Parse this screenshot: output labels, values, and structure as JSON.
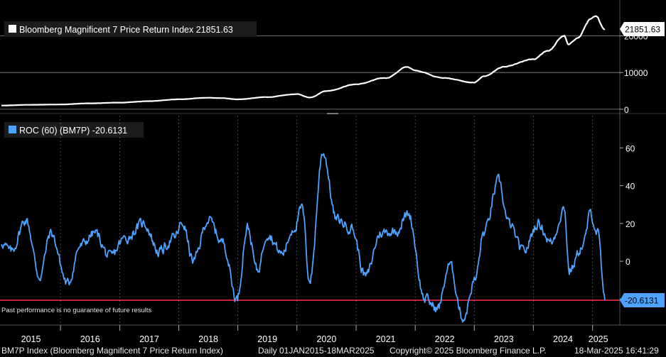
{
  "chart_data": [
    {
      "type": "line",
      "legend": "Bloomberg Magnificent 7 Price Return Index 21851.63",
      "series": [
        {
          "name": "Bloomberg Magnificent 7 Price Return Index",
          "color": "#ffffff"
        }
      ],
      "last_value": "21851.63",
      "x": [
        "2015-01-01",
        "2015-07-01",
        "2016-01-01",
        "2016-07-01",
        "2017-01-01",
        "2017-07-01",
        "2018-01-01",
        "2018-07-01",
        "2018-10-01",
        "2019-01-01",
        "2019-07-01",
        "2020-01-01",
        "2020-03-20",
        "2020-07-01",
        "2021-01-01",
        "2021-07-01",
        "2021-11-15",
        "2022-01-01",
        "2022-07-01",
        "2022-12-31",
        "2023-03-01",
        "2023-07-01",
        "2024-01-01",
        "2024-04-01",
        "2024-07-10",
        "2024-08-05",
        "2024-10-01",
        "2024-12-20",
        "2025-01-20",
        "2025-03-18"
      ],
      "y": [
        1000,
        1200,
        1300,
        1600,
        1800,
        2200,
        2700,
        3100,
        3000,
        2700,
        3300,
        4100,
        3200,
        5000,
        6800,
        8500,
        11500,
        10500,
        8500,
        7200,
        9000,
        11500,
        13500,
        16000,
        20000,
        17500,
        19500,
        24500,
        25000,
        21851.63
      ],
      "yticks": [
        "0",
        "10000",
        "20000"
      ],
      "ylim": [
        -800,
        29000
      ]
    },
    {
      "type": "line",
      "legend": "ROC (60) (BM7P) -20.6131",
      "series": [
        {
          "name": "ROC (60) (BM7P)",
          "color": "#4da3ff"
        }
      ],
      "last_value": "-20.6131",
      "reference_line": {
        "value": -20.6131,
        "color": "#ff2a4a"
      },
      "x": [
        "2015-01-01",
        "2015-03-01",
        "2015-06-01",
        "2015-08-25",
        "2015-11-01",
        "2016-02-15",
        "2016-05-01",
        "2016-08-01",
        "2016-11-01",
        "2017-02-01",
        "2017-06-01",
        "2017-09-01",
        "2017-12-01",
        "2018-01-25",
        "2018-04-01",
        "2018-07-01",
        "2018-10-01",
        "2018-12-26",
        "2019-03-01",
        "2019-05-01",
        "2019-07-01",
        "2019-10-01",
        "2019-12-15",
        "2020-02-01",
        "2020-03-20",
        "2020-06-10",
        "2020-09-01",
        "2020-12-01",
        "2021-03-01",
        "2021-06-01",
        "2021-09-01",
        "2021-11-20",
        "2022-03-01",
        "2022-05-20",
        "2022-08-01",
        "2022-10-25",
        "2023-01-05",
        "2023-03-01",
        "2023-06-01",
        "2023-08-01",
        "2023-10-30",
        "2024-02-01",
        "2024-04-20",
        "2024-07-10",
        "2024-08-10",
        "2024-11-01",
        "2024-12-20",
        "2025-02-01",
        "2025-03-18"
      ],
      "y": [
        10,
        5,
        22,
        -8,
        15,
        -12,
        8,
        15,
        2,
        12,
        20,
        5,
        12,
        20,
        0,
        22,
        10,
        -20,
        18,
        -5,
        15,
        4,
        18,
        28,
        -10,
        58,
        22,
        18,
        -8,
        15,
        16,
        25,
        -20,
        -25,
        -2,
        -30,
        -10,
        15,
        42,
        20,
        5,
        20,
        10,
        28,
        -5,
        8,
        25,
        15,
        -20.6131
      ],
      "yticks": [
        "-20",
        "0",
        "20",
        "40",
        "60"
      ],
      "ylim": [
        -33,
        77
      ]
    }
  ],
  "x_axis": {
    "years": [
      "2015",
      "2016",
      "2017",
      "2018",
      "2019",
      "2020",
      "2021",
      "2022",
      "2023",
      "2024",
      "2025"
    ]
  },
  "disclaimer": "Past performance is no guarantee of future results",
  "footer": {
    "index_desc": "BM7P Index (Bloomberg Magnificent 7 Price Return Index)",
    "range": "Daily 01JAN2015-18MAR2025",
    "copyright": "Copyright© 2025 Bloomberg Finance L.P.",
    "timestamp": "18-Mar-2025 16:41:29"
  }
}
